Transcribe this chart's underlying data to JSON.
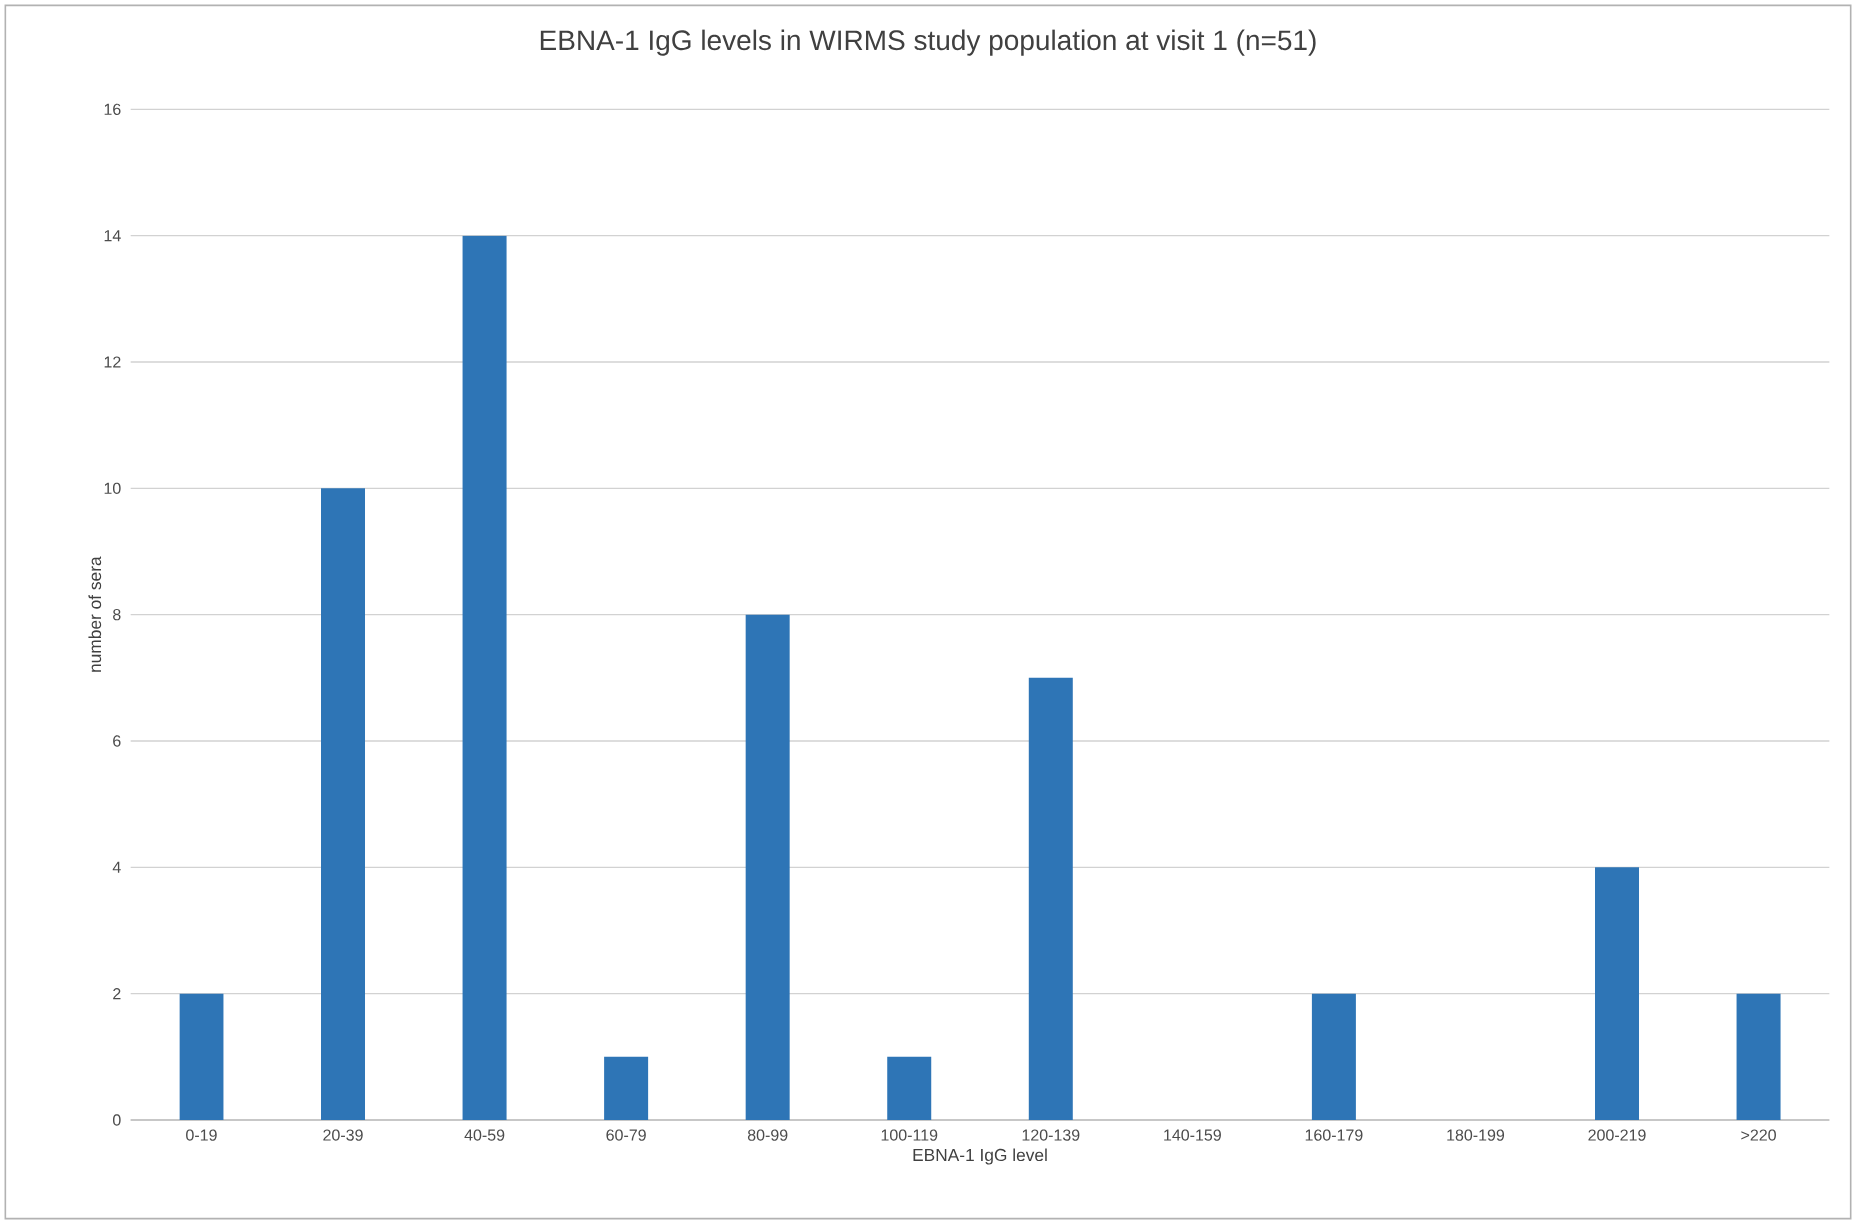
{
  "chart_data": {
    "type": "bar",
    "title": "EBNA-1 IgG levels in WIRMS study population at visit 1 (n=51)",
    "xlabel": "EBNA-1 IgG level",
    "ylabel": "number of sera",
    "categories": [
      "0-19",
      "20-39",
      "40-59",
      "60-79",
      "80-99",
      "100-119",
      "120-139",
      "140-159",
      "160-179",
      "180-199",
      "200-219",
      ">220"
    ],
    "values": [
      2,
      10,
      14,
      1,
      8,
      1,
      7,
      0,
      2,
      0,
      4,
      2
    ],
    "color": "#2e75b6",
    "ylim": [
      0,
      16
    ],
    "yticks": [
      0,
      2,
      4,
      6,
      8,
      10,
      12,
      14,
      16
    ],
    "grid": "y"
  }
}
